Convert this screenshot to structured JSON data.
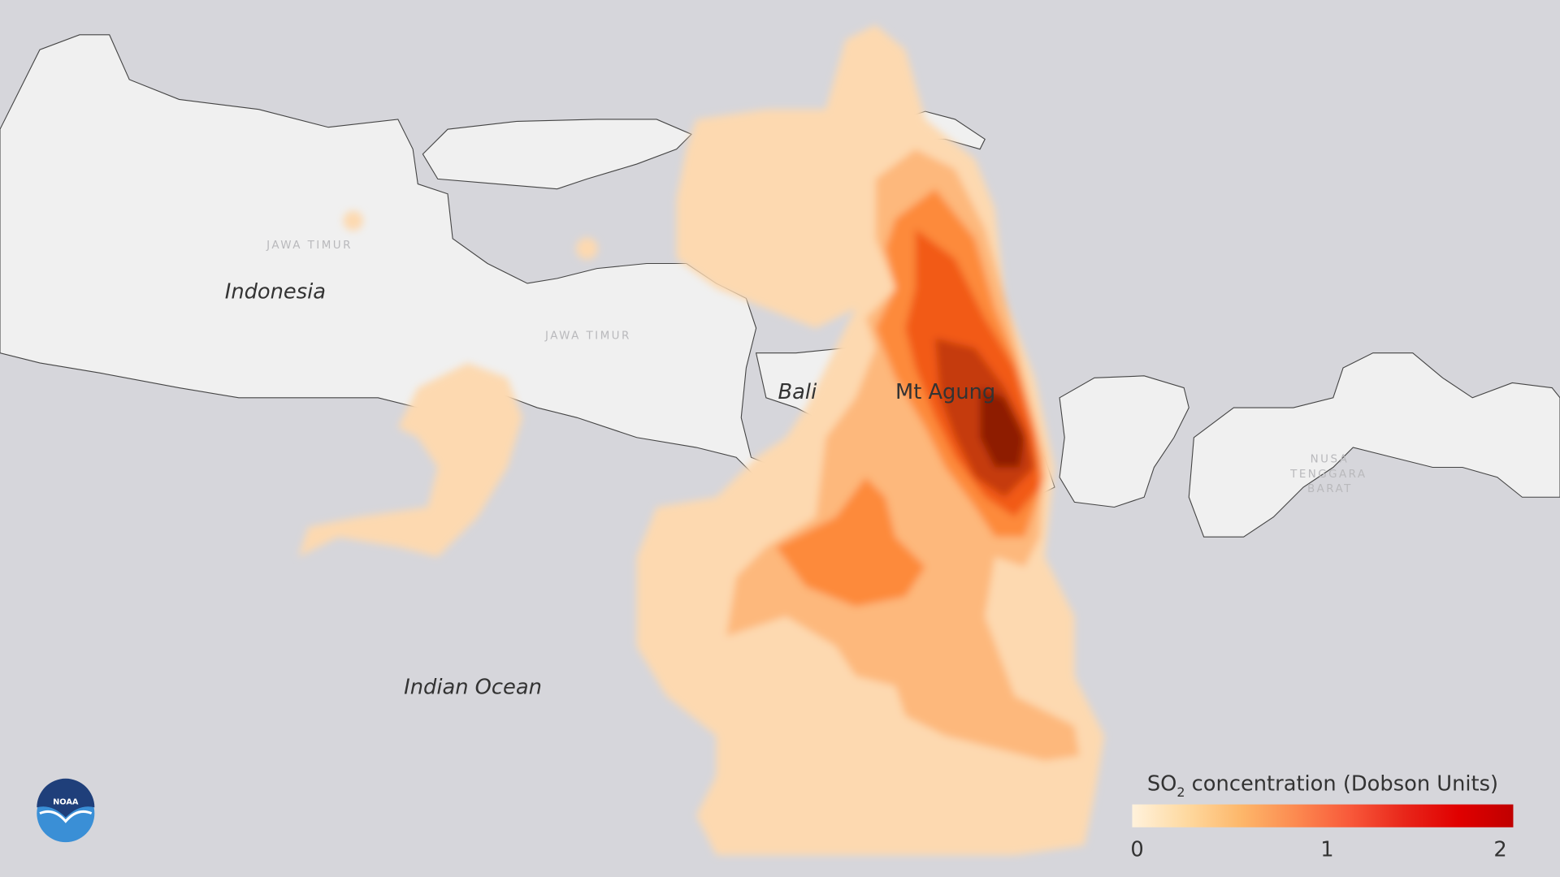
{
  "map": {
    "labels": {
      "country": "Indonesia",
      "ocean": "Indian Ocean",
      "island": "Bali",
      "volcano": "Mt Agung",
      "province_1": "JAWA TIMUR",
      "province_2": "JAWA TIMUR",
      "province_3_lines": [
        "NUSA",
        "TENGGARA",
        "BARAT"
      ]
    },
    "colors": {
      "ocean": "#d6d6db",
      "land": "#f0f0f0",
      "plume_levels": [
        "#fdd9b0",
        "#fdb87c",
        "#fd8a3a",
        "#f25a12",
        "#c53a0c",
        "#8e1d06"
      ]
    }
  },
  "legend": {
    "title_prefix": "SO",
    "title_subscript": "2",
    "title_suffix": " concentration (Dobson Units)",
    "ticks": [
      "0",
      "1",
      "2"
    ],
    "range": [
      0,
      2
    ],
    "gradient": [
      "#fff2dc",
      "#fed9a0",
      "#fdb76a",
      "#fc8a50",
      "#f8593a",
      "#e8261a",
      "#e00000",
      "#c00000"
    ]
  },
  "logo": {
    "text": "NOAA"
  }
}
